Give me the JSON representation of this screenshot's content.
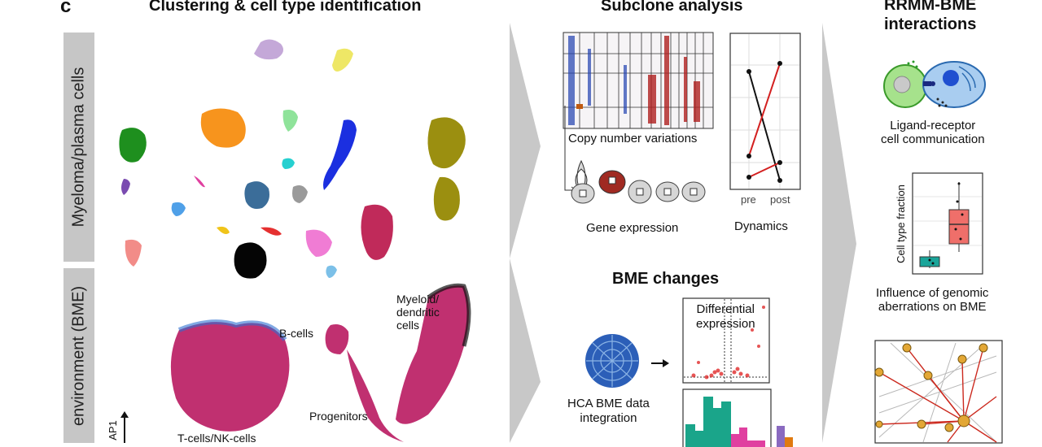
{
  "panel_letter": "c",
  "section1": {
    "title": "Clustering & cell type identification",
    "side_label_top": "Myeloma/plasma cells",
    "side_label_bottom": "environment (BME)",
    "axis_label": "AP1",
    "cluster_labels": {
      "b_cells": "B-cells",
      "myeloid": "Myeloid/",
      "myeloid2": "dendritic",
      "myeloid3": "cells",
      "progenitors": "Progenitors",
      "tnk": "T-cells/NK-cells"
    }
  },
  "section2": {
    "title": "Subclone analysis",
    "cnv_label": "Copy number variations",
    "gene_label": "Gene expression",
    "dynamics_label": "Dynamics",
    "dyn_tick_pre": "pre",
    "dyn_tick_post": "post",
    "bme_title": "BME changes",
    "diff_label_1": "Differential",
    "diff_label_2": "expression",
    "hca_label_1": "HCA BME data",
    "hca_label_2": "integration"
  },
  "section3": {
    "title_1": "RRMM-BME",
    "title_2": "interactions",
    "ligand_1": "Ligand-receptor",
    "ligand_2": "cell communication",
    "box_ylabel": "Cell type fraction",
    "influence_1": "Influence of genomic",
    "influence_2": "aberrations on BME"
  },
  "colors": {
    "chevron": "#c8c8c8",
    "tab": "#c6c6c6",
    "red_line": "#d32020",
    "teal": "#1aa59a",
    "salmon": "#ef6f6a",
    "violin_red": "#a02a22",
    "network_node": "#e3a735",
    "network_edge": "#cc2a1f"
  }
}
